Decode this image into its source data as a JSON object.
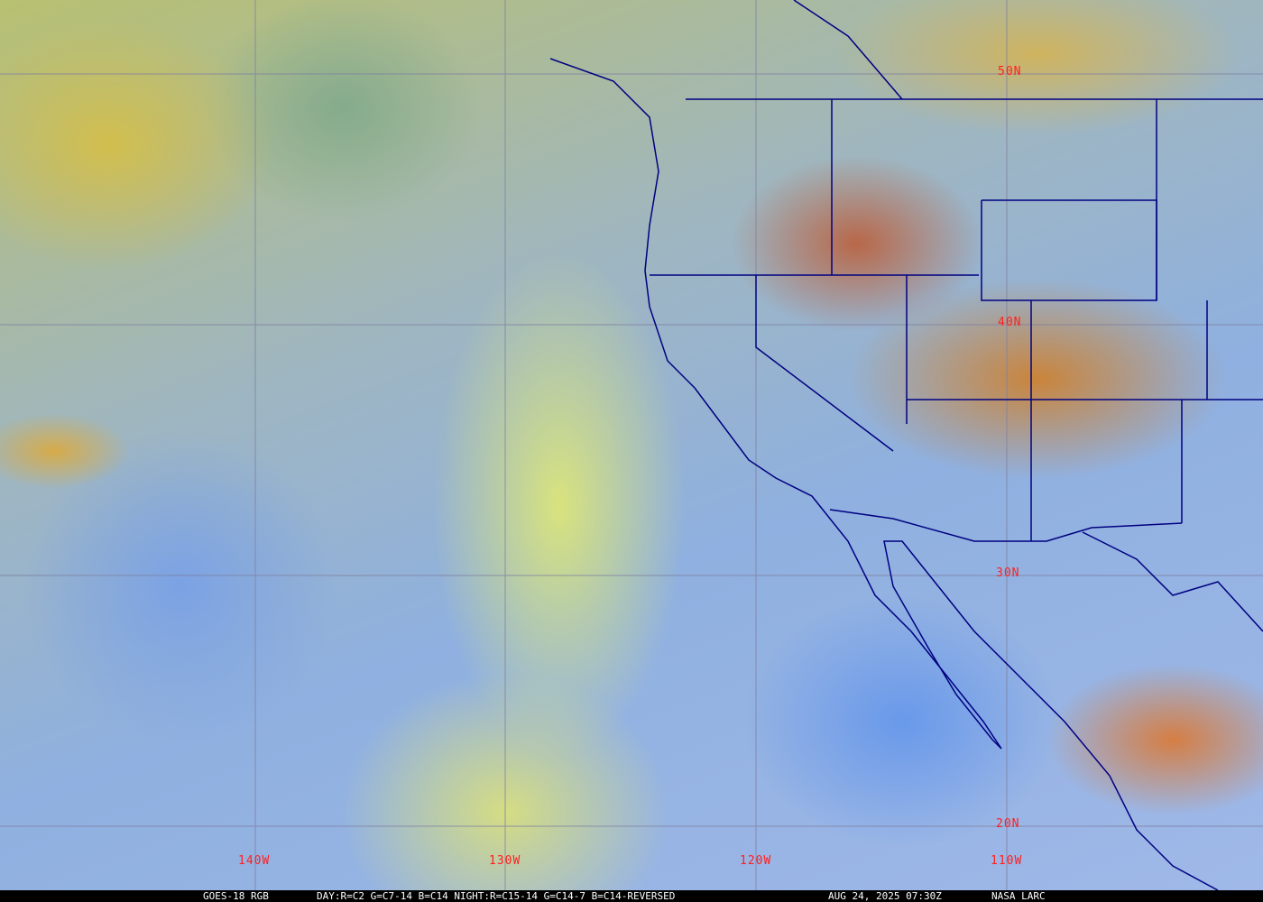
{
  "map": {
    "latitude_labels": [
      "50N",
      "40N",
      "30N",
      "20N"
    ],
    "longitude_labels": [
      "140W",
      "130W",
      "120W",
      "110W"
    ],
    "gridline_color": "#8080a0",
    "boundary_color": "#000080",
    "label_color": "#ff2020"
  },
  "footer": {
    "product": "GOES-18 RGB",
    "recipe": "DAY:R=C2 G=C7-14 B=C14 NIGHT:R=C15-14 G=C14-7 B=C14-REVERSED",
    "timestamp": "AUG 24, 2025 07:30Z",
    "source": "NASA LARC"
  }
}
